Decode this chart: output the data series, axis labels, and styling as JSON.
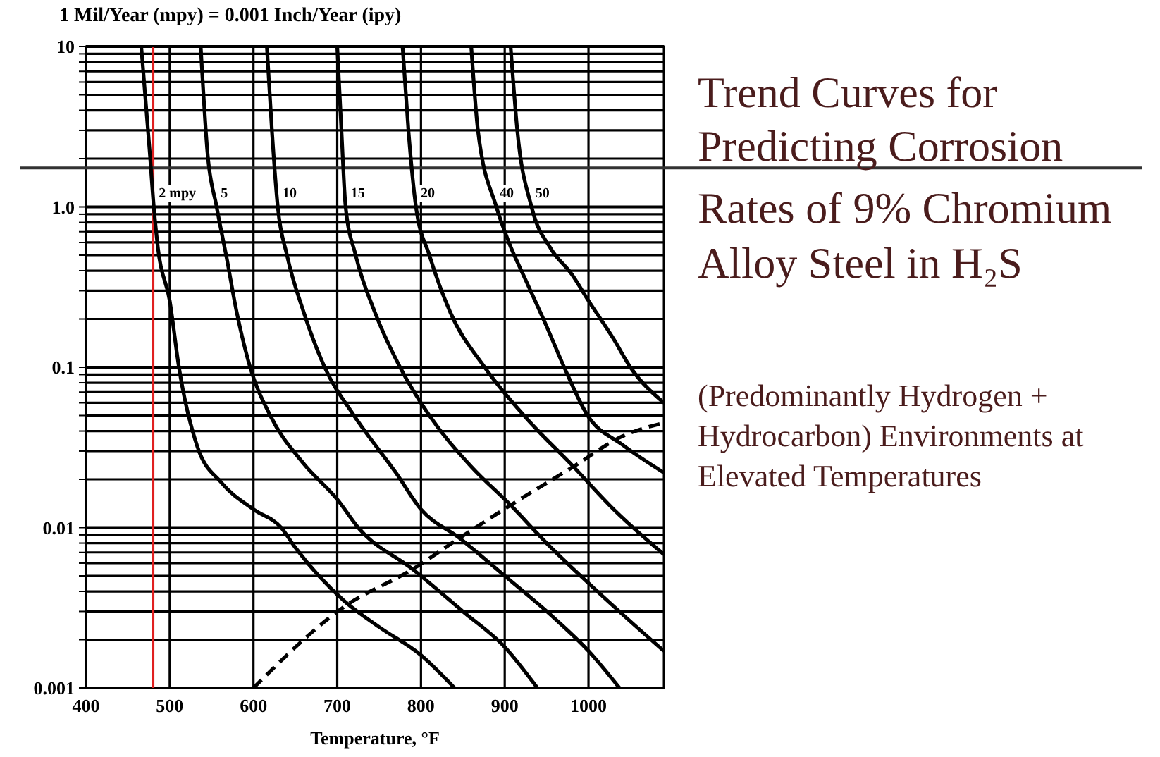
{
  "chart_data": {
    "type": "line",
    "title": "Trend Curves for Predicting Corrosion Rates of 9% Chromium Alloy Steel in H₂S",
    "subtitle": "(Predominantly Hydrogen + Hydrocarbon) Environments at Elevated Temperatures",
    "xlabel": "Temperature, °F",
    "annotations": [
      "1 Mil/Year (mpy) = 0.001 Inch/Year (ipy)"
    ],
    "log": "y",
    "grid": true,
    "marker": "none",
    "line_style": "solid",
    "xlim": [
      400,
      1090
    ],
    "xticks": [
      400,
      500,
      600,
      700,
      800,
      900,
      1000
    ],
    "ylim": [
      0.001,
      10
    ],
    "yticks": [
      {
        "value": 0.001,
        "label": "0.001"
      },
      {
        "value": 0.002,
        "label": null
      },
      {
        "value": 0.003,
        "label": null
      },
      {
        "value": 0.004,
        "label": null
      },
      {
        "value": 0.005,
        "label": null
      },
      {
        "value": 0.006,
        "label": null
      },
      {
        "value": 0.007,
        "label": null
      },
      {
        "value": 0.008,
        "label": null
      },
      {
        "value": 0.009,
        "label": null
      },
      {
        "value": 0.01,
        "label": "0.01"
      },
      {
        "value": 0.02,
        "label": null
      },
      {
        "value": 0.03,
        "label": null
      },
      {
        "value": 0.04,
        "label": null
      },
      {
        "value": 0.05,
        "label": null
      },
      {
        "value": 0.06,
        "label": null
      },
      {
        "value": 0.07,
        "label": null
      },
      {
        "value": 0.08,
        "label": null
      },
      {
        "value": 0.09,
        "label": null
      },
      {
        "value": 0.1,
        "label": "0.1"
      },
      {
        "value": 0.2,
        "label": null
      },
      {
        "value": 0.3,
        "label": null
      },
      {
        "value": 0.4,
        "label": null
      },
      {
        "value": 0.5,
        "label": null
      },
      {
        "value": 0.6,
        "label": null
      },
      {
        "value": 0.7,
        "label": null
      },
      {
        "value": 0.8,
        "label": null
      },
      {
        "value": 0.9,
        "label": null
      },
      {
        "value": 1,
        "label": "1.0"
      },
      {
        "value": 2,
        "label": null
      },
      {
        "value": 3,
        "label": null
      },
      {
        "value": 4,
        "label": null
      },
      {
        "value": 5,
        "label": null
      },
      {
        "value": 6,
        "label": null
      },
      {
        "value": 7,
        "label": null
      },
      {
        "value": 8,
        "label": null
      },
      {
        "value": 9,
        "label": null
      },
      {
        "value": 10,
        "label": "10"
      }
    ],
    "ref_lines": [
      {
        "axis": "x",
        "value": 480,
        "color": "#e02020"
      },
      {
        "axis": "y",
        "value": 1.75,
        "color": "#333333"
      }
    ],
    "series": [
      {
        "name": "2 mpy",
        "color": "#000000",
        "x": [
          466,
          476,
          481,
          486,
          500,
          511,
          533,
          562,
          600,
          633,
          650,
          708,
          750,
          800,
          840
        ],
        "values": [
          10,
          2.24,
          1,
          0.55,
          0.26,
          0.1,
          0.032,
          0.019,
          0.013,
          0.01,
          0.0075,
          0.0035,
          0.0024,
          0.0016,
          0.001
        ]
      },
      {
        "name": "5",
        "color": "#000000",
        "x": [
          537,
          545,
          556,
          568,
          580,
          596,
          620,
          660,
          700,
          725,
          790,
          850,
          900,
          939
        ],
        "values": [
          10,
          2.2,
          1,
          0.48,
          0.22,
          0.1,
          0.05,
          0.025,
          0.015,
          0.01,
          0.0055,
          0.003,
          0.0018,
          0.001
        ]
      },
      {
        "name": "10",
        "color": "#000000",
        "x": [
          616,
          622,
          629,
          640,
          660,
          685,
          720,
          770,
          800,
          846,
          900,
          960,
          1000,
          1037
        ],
        "values": [
          10,
          3,
          1,
          0.5,
          0.22,
          0.1,
          0.05,
          0.022,
          0.013,
          0.0086,
          0.005,
          0.0027,
          0.0017,
          0.001
        ]
      },
      {
        "name": "15",
        "color": "#000000",
        "x": [
          700,
          705,
          710,
          722,
          745,
          775,
          810,
          860,
          907,
          950,
          1000,
          1050,
          1090
        ],
        "values": [
          10,
          3,
          1,
          0.5,
          0.22,
          0.1,
          0.05,
          0.024,
          0.0138,
          0.008,
          0.0045,
          0.0026,
          0.0017
        ]
      },
      {
        "name": "20",
        "color": "#000000",
        "x": [
          778,
          785,
          794,
          810,
          835,
          876,
          926,
          982,
          1030,
          1090
        ],
        "values": [
          10,
          3,
          1,
          0.5,
          0.22,
          0.1,
          0.048,
          0.024,
          0.013,
          0.0068
        ]
      },
      {
        "name": "40",
        "color": "#000000",
        "x": [
          860,
          868,
          890,
          905,
          925,
          950,
          971,
          999,
          1040,
          1090
        ],
        "values": [
          10,
          3,
          1,
          0.6,
          0.35,
          0.18,
          0.1,
          0.05,
          0.033,
          0.022
        ]
      },
      {
        "name": "50",
        "color": "#000000",
        "x": [
          907,
          915,
          932,
          955,
          980,
          1000,
          1030,
          1050,
          1090
        ],
        "values": [
          10,
          3,
          1,
          0.55,
          0.38,
          0.26,
          0.15,
          0.1,
          0.06
        ]
      },
      {
        "color": "#000000",
        "line_style": "dashed",
        "x": [
          600,
          708,
          790,
          846,
          907,
          982,
          1040,
          1090
        ],
        "values": [
          0.001,
          0.0032,
          0.0055,
          0.0086,
          0.0138,
          0.024,
          0.037,
          0.045
        ]
      }
    ]
  }
}
